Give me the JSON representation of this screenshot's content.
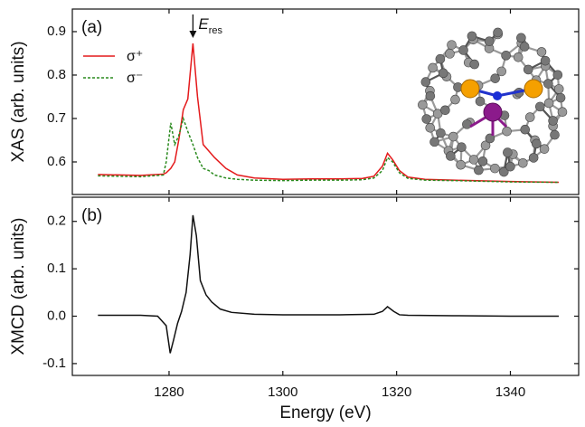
{
  "chart_data": [
    {
      "type": "line",
      "ylabel": "XAS (arb. units)",
      "panel_label": "(a)",
      "x": [
        1267.5,
        1275,
        1279,
        1279.5,
        1280.3,
        1281,
        1281.7,
        1282.5,
        1283.3,
        1284.2,
        1285,
        1286,
        1287,
        1288,
        1290,
        1292,
        1295,
        1300,
        1305,
        1310,
        1314,
        1316,
        1317.5,
        1318.4,
        1319.3,
        1320.5,
        1322,
        1325,
        1330,
        1340,
        1348.5
      ],
      "series": [
        {
          "name": "σ⁺",
          "color": "#e41a1c",
          "dash": false,
          "values": [
            0.571,
            0.569,
            0.572,
            0.575,
            0.585,
            0.6,
            0.65,
            0.72,
            0.745,
            0.873,
            0.75,
            0.64,
            0.625,
            0.61,
            0.585,
            0.57,
            0.563,
            0.56,
            0.561,
            0.561,
            0.562,
            0.567,
            0.59,
            0.62,
            0.605,
            0.58,
            0.565,
            0.56,
            0.558,
            0.555,
            0.553
          ]
        },
        {
          "name": "σ⁻",
          "color": "#2a8a1e",
          "dash": true,
          "values": [
            0.568,
            0.566,
            0.57,
            0.6,
            0.69,
            0.64,
            0.66,
            0.7,
            0.67,
            0.64,
            0.61,
            0.585,
            0.58,
            0.57,
            0.563,
            0.56,
            0.558,
            0.557,
            0.558,
            0.558,
            0.559,
            0.563,
            0.58,
            0.61,
            0.6,
            0.575,
            0.562,
            0.558,
            0.557,
            0.554,
            0.553
          ]
        }
      ],
      "annotation": {
        "text": "E",
        "subscript": "res",
        "x": 1284.2
      },
      "legend": "upper left",
      "xlim": [
        1263,
        1352
      ],
      "xticks": [
        1280,
        1300,
        1320,
        1340
      ],
      "ylim": [
        0.525,
        0.952
      ],
      "yticks": [
        0.6,
        0.7,
        0.8,
        0.9
      ]
    },
    {
      "type": "line",
      "ylabel": "XMCD (arb. units)",
      "xlabel": "Energy (eV)",
      "panel_label": "(b)",
      "x": [
        1267.5,
        1275,
        1278,
        1279.5,
        1280.2,
        1280.8,
        1281.5,
        1282.2,
        1283,
        1283.7,
        1284.2,
        1284.8,
        1285.5,
        1286.5,
        1287.5,
        1289,
        1291,
        1295,
        1300,
        1310,
        1316,
        1317.5,
        1318.4,
        1319.5,
        1320.5,
        1322,
        1330,
        1340,
        1348.5
      ],
      "series": [
        {
          "color": "#111111",
          "dash": false,
          "values": [
            0.002,
            0.002,
            0.0,
            -0.02,
            -0.078,
            -0.05,
            -0.015,
            0.01,
            0.05,
            0.13,
            0.213,
            0.17,
            0.075,
            0.045,
            0.03,
            0.015,
            0.008,
            0.004,
            0.003,
            0.003,
            0.004,
            0.01,
            0.02,
            0.01,
            0.003,
            0.002,
            0.001,
            0.0,
            0.0
          ]
        }
      ],
      "xlim": [
        1263,
        1352
      ],
      "xticks": [
        1280,
        1300,
        1320,
        1340
      ],
      "ylim": [
        -0.125,
        0.251
      ],
      "yticks": [
        -0.1,
        {
          "value": 0,
          "label": "0.0"
        },
        0.1,
        0.2
      ]
    }
  ]
}
